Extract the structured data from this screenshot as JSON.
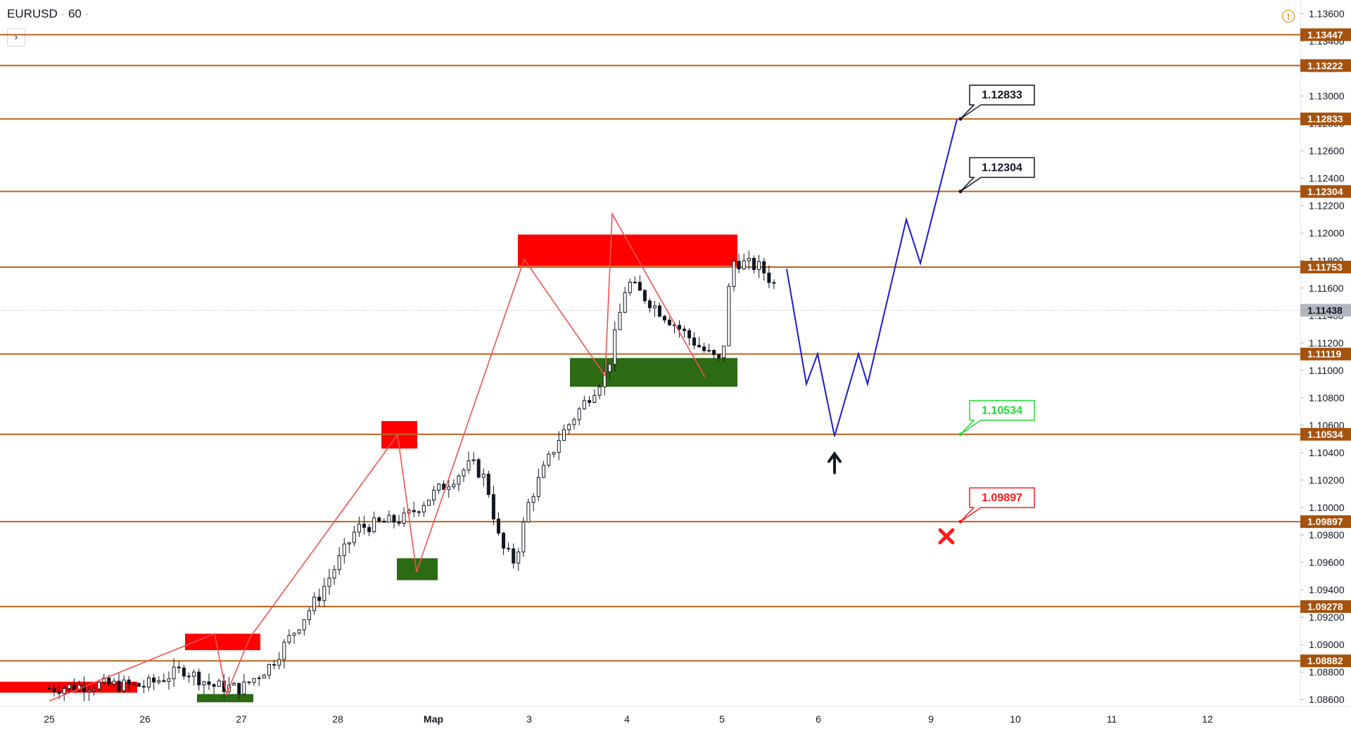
{
  "header": {
    "symbol": "EURUSD",
    "interval": "60"
  },
  "colors": {
    "level_line": "#c0631a",
    "level_tag": "#a5520f",
    "supply_zone": "#ff0000",
    "demand_zone": "#2d6a14",
    "zigzag": "#ef5350",
    "forecast": "#1a1ad6",
    "candle": "#131722",
    "current_price_tag": "#b2b5be"
  },
  "icons": {
    "collapse": "chevron-right-icon",
    "warning": "warning-icon",
    "settings": "gear-icon"
  },
  "chart_data": {
    "type": "line",
    "y_axis": {
      "range": [
        1.0855,
        1.137
      ],
      "ticks": [
        "1.08600",
        "1.08800",
        "1.09000",
        "1.09200",
        "1.09400",
        "1.09600",
        "1.09800",
        "1.10000",
        "1.10200",
        "1.10400",
        "1.10600",
        "1.10800",
        "1.11000",
        "1.11200",
        "1.11400",
        "1.11600",
        "1.11800",
        "1.12000",
        "1.12200",
        "1.12400",
        "1.12600",
        "1.12800",
        "1.13000",
        "1.13200",
        "1.13400",
        "1.13600"
      ]
    },
    "x_axis": {
      "ticks": [
        "25",
        "26",
        "27",
        "28",
        "Мар",
        "3",
        "4",
        "5",
        "6",
        "9",
        "10",
        "11",
        "12"
      ]
    },
    "grid": false,
    "levels": [
      "1.13447",
      "1.13222",
      "1.12833",
      "1.12304",
      "1.11753",
      "1.11119",
      "1.10534",
      "1.09897",
      "1.09278",
      "1.08882"
    ],
    "current_price": "1.11438",
    "targets": [
      {
        "value": "1.12833",
        "kind": "tp"
      },
      {
        "value": "1.12304",
        "kind": "tp"
      },
      {
        "value": "1.10534",
        "kind": "entry"
      },
      {
        "value": "1.09897",
        "kind": "stop"
      }
    ],
    "supply_zones": [
      {
        "from": 1.0873,
        "to": 1.0865
      },
      {
        "from": 1.0908,
        "to": 1.0896
      },
      {
        "from": 1.1063,
        "to": 1.1043
      },
      {
        "from": 1.1199,
        "to": 1.1176
      }
    ],
    "demand_zones": [
      {
        "from": 1.0864,
        "to": 1.0858
      },
      {
        "from": 1.0963,
        "to": 1.0947
      },
      {
        "from": 1.1109,
        "to": 1.1088
      }
    ],
    "zigzag": [
      1.0859,
      1.0908,
      1.0864,
      1.0905,
      1.1053,
      1.0953,
      1.1181,
      1.1096,
      1.1214,
      1.1095
    ],
    "forecast_path": [
      1.1174,
      1.109,
      1.1112,
      1.1052,
      1.1112,
      1.109,
      1.121,
      1.1178,
      1.1283
    ]
  }
}
